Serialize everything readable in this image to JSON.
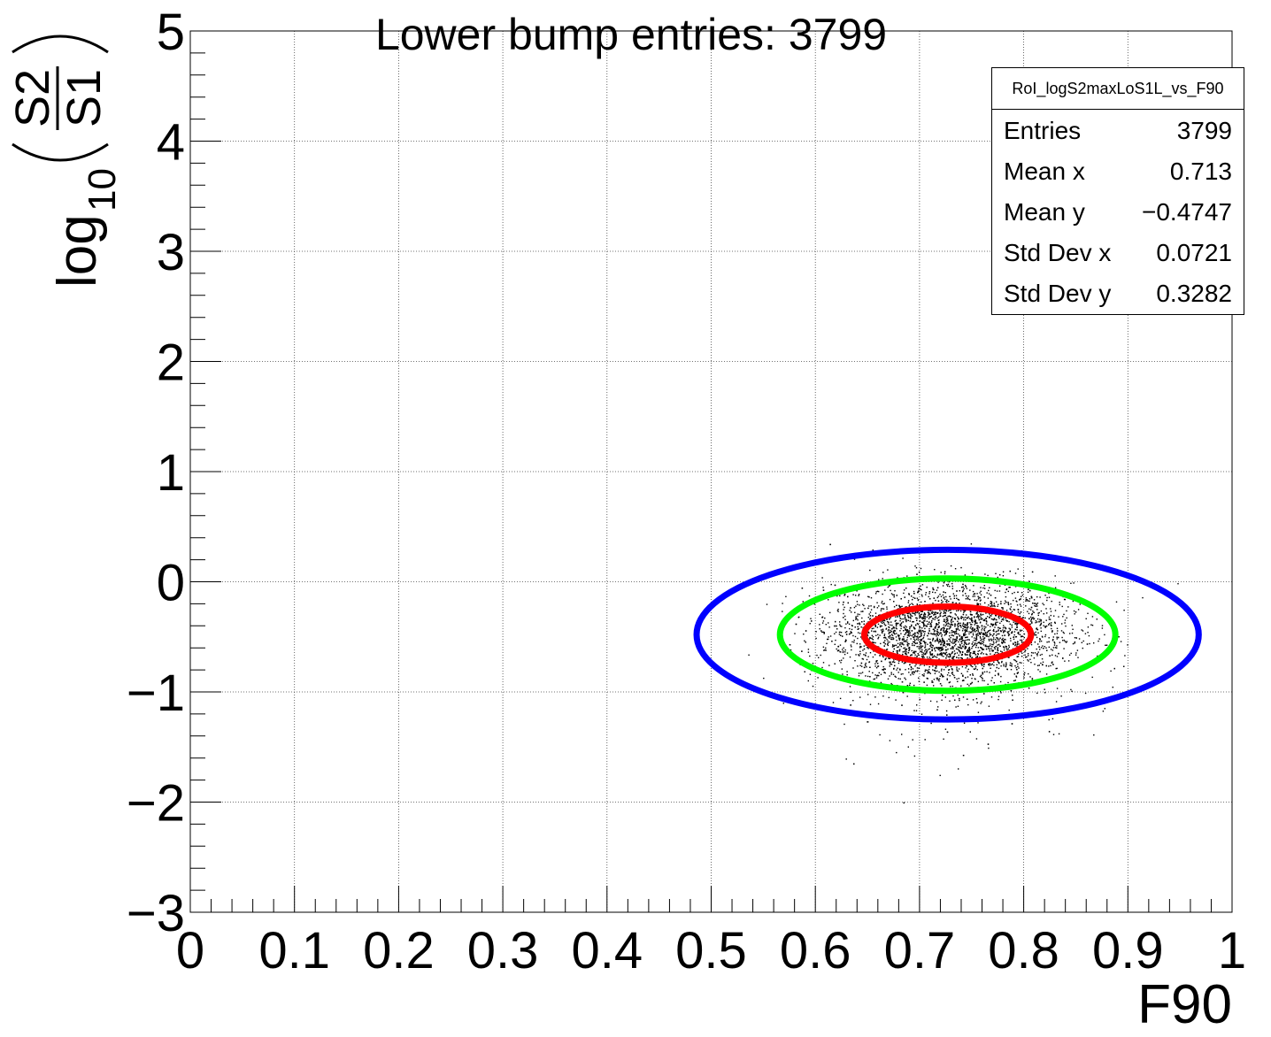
{
  "title": "Lower bump entries: 3799",
  "stats": {
    "name": "RoI_logS2maxLoS1L_vs_F90",
    "rows": [
      {
        "key": "Entries",
        "value": "3799"
      },
      {
        "key": "Mean x",
        "value": "0.713"
      },
      {
        "key": "Mean y",
        "value": "−0.4747"
      },
      {
        "key": "Std Dev x",
        "value": "0.0721"
      },
      {
        "key": "Std Dev y",
        "value": "0.3282"
      }
    ]
  },
  "chart_data": {
    "type": "scatter",
    "xlabel": "F90",
    "ylabel": "log10(S2/S1)",
    "ylabel_parts": {
      "func": "log",
      "sub": "10",
      "num": "S2",
      "den": "S1"
    },
    "xlim": [
      0,
      1
    ],
    "ylim": [
      -3,
      5
    ],
    "grid": true,
    "x_ticks": [
      0,
      0.1,
      0.2,
      0.3,
      0.4,
      0.5,
      0.6,
      0.7,
      0.8,
      0.9,
      1
    ],
    "x_tick_labels": [
      "0",
      "0.1",
      "0.2",
      "0.3",
      "0.4",
      "0.5",
      "0.6",
      "0.7",
      "0.8",
      "0.9",
      "1"
    ],
    "y_ticks": [
      -3,
      -2,
      -1,
      0,
      1,
      2,
      3,
      4,
      5
    ],
    "y_tick_labels": [
      "−3",
      "−2",
      "−1",
      "0",
      "1",
      "2",
      "3",
      "4",
      "5"
    ],
    "points": {
      "count": 3799,
      "mean_x": 0.713,
      "mean_y": -0.4747,
      "std_x": 0.0721,
      "std_y": 0.3282,
      "color": "#000000"
    },
    "ellipses": [
      {
        "cx": 0.727,
        "cy": -0.48,
        "rx": 0.241,
        "ry": 0.77,
        "color": "#0000ff"
      },
      {
        "cx": 0.727,
        "cy": -0.48,
        "rx": 0.161,
        "ry": 0.51,
        "color": "#00ff00"
      },
      {
        "cx": 0.727,
        "cy": -0.48,
        "rx": 0.08,
        "ry": 0.255,
        "color": "#ff0000"
      }
    ]
  }
}
